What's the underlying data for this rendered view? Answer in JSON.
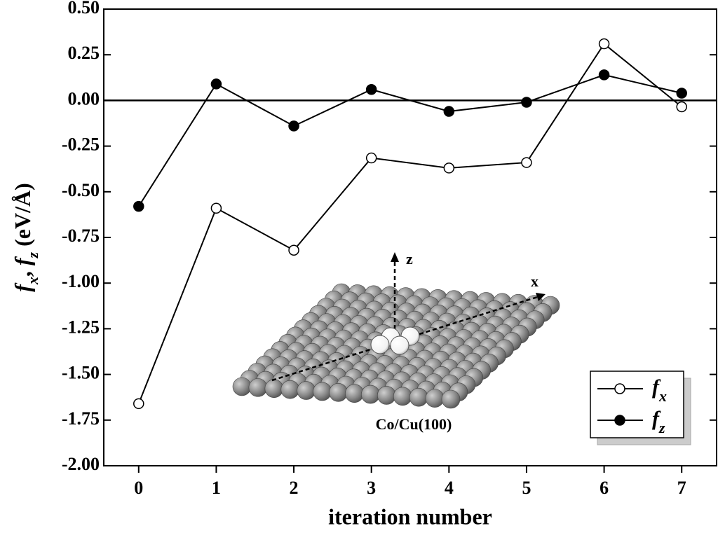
{
  "chart_data": {
    "type": "line",
    "xlabel": "iteration number",
    "ylabel": [
      "f",
      "x",
      ", ",
      "f",
      "z",
      " (eV/Å)"
    ],
    "x": [
      0,
      1,
      2,
      3,
      4,
      5,
      6,
      7
    ],
    "series": [
      {
        "name": "fx",
        "color": "#000000",
        "marker": "open",
        "values": [
          -1.66,
          -0.59,
          -0.82,
          -0.315,
          -0.37,
          -0.34,
          0.31,
          -0.035
        ]
      },
      {
        "name": "fz",
        "color": "#000000",
        "marker": "filled",
        "values": [
          -0.58,
          0.09,
          -0.14,
          0.06,
          -0.06,
          -0.01,
          0.14,
          0.04
        ]
      }
    ],
    "xlim": [
      -0.45,
      7.45
    ],
    "ylim": [
      -2.0,
      0.5
    ],
    "xticks": [
      0,
      1,
      2,
      3,
      4,
      5,
      6,
      7
    ],
    "yticks": [
      {
        "value": -2.0,
        "label": "-2.00"
      },
      {
        "value": -1.75,
        "label": "-1.75"
      },
      {
        "value": -1.5,
        "label": "-1.50"
      },
      {
        "value": -1.25,
        "label": "-1.25"
      },
      {
        "value": -1.0,
        "label": "-1.00"
      },
      {
        "value": -0.75,
        "label": "-0.75"
      },
      {
        "value": -0.5,
        "label": "-0.50"
      },
      {
        "value": -0.25,
        "label": "-0.25"
      },
      {
        "value": 0,
        "label": "0.00"
      },
      {
        "value": 0.25,
        "label": "0.25"
      },
      {
        "value": 0.5,
        "label": "0.50"
      }
    ],
    "zero_line": 0,
    "legend": "lower right",
    "inset": {
      "label": "Co/Cu(100)",
      "axis_z": "z",
      "axis_x": "x"
    }
  }
}
